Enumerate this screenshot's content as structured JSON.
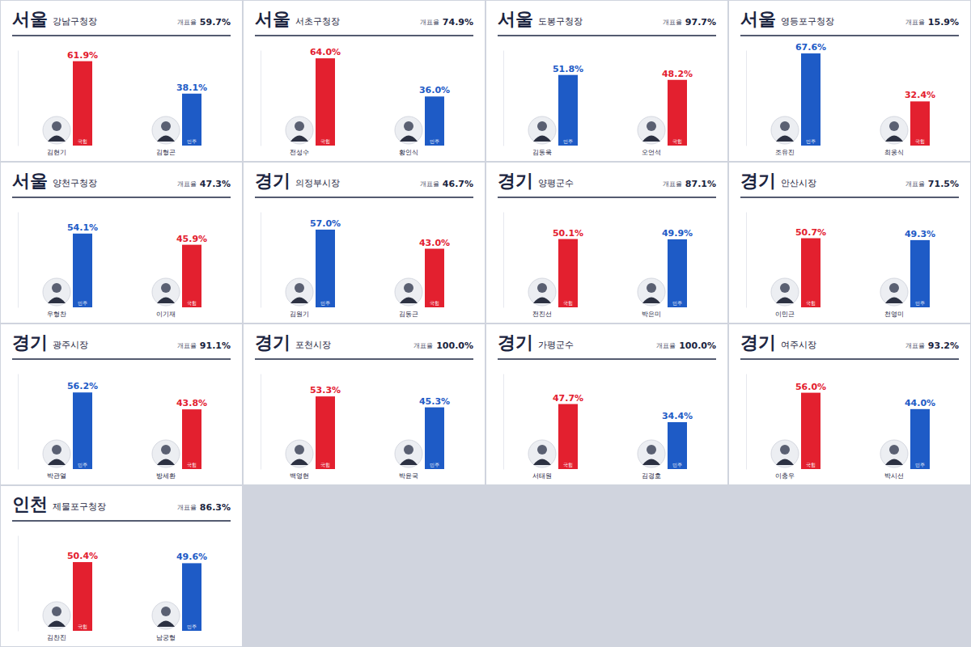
{
  "chart_data": [
    {
      "type": "bar",
      "title": "서울",
      "subtitle": "강남구청장",
      "count_label": "개표율",
      "count_rate": "59.7%",
      "categories": [
        "김현기",
        "김형곤"
      ],
      "parties": [
        "국힘",
        "민주"
      ],
      "values": [
        61.9,
        38.1
      ],
      "value_labels": [
        "61.9%",
        "38.1%"
      ],
      "colors": [
        "#e3202f",
        "#1e5bc6"
      ],
      "ylim": [
        0,
        70
      ],
      "tick_labels": false,
      "data_labels": true
    },
    {
      "type": "bar",
      "title": "서울",
      "subtitle": "서초구청장",
      "count_label": "개표율",
      "count_rate": "74.9%",
      "categories": [
        "전성수",
        "황인식"
      ],
      "parties": [
        "국힘",
        "민주"
      ],
      "values": [
        64.0,
        36.0
      ],
      "value_labels": [
        "64.0%",
        "36.0%"
      ],
      "colors": [
        "#e3202f",
        "#1e5bc6"
      ],
      "ylim": [
        0,
        70
      ],
      "tick_labels": false,
      "data_labels": true
    },
    {
      "type": "bar",
      "title": "서울",
      "subtitle": "도봉구청장",
      "count_label": "개표율",
      "count_rate": "97.7%",
      "categories": [
        "김동욱",
        "오언석"
      ],
      "parties": [
        "민주",
        "국힘"
      ],
      "values": [
        51.8,
        48.2
      ],
      "value_labels": [
        "51.8%",
        "48.2%"
      ],
      "colors": [
        "#1e5bc6",
        "#e3202f"
      ],
      "ylim": [
        0,
        70
      ],
      "tick_labels": false,
      "data_labels": true
    },
    {
      "type": "bar",
      "title": "서울",
      "subtitle": "영등포구청장",
      "count_label": "개표율",
      "count_rate": "15.9%",
      "categories": [
        "조유진",
        "최웅식"
      ],
      "parties": [
        "민주",
        "국힘"
      ],
      "values": [
        67.6,
        32.4
      ],
      "value_labels": [
        "67.6%",
        "32.4%"
      ],
      "colors": [
        "#1e5bc6",
        "#e3202f"
      ],
      "ylim": [
        0,
        70
      ],
      "tick_labels": false,
      "data_labels": true
    },
    {
      "type": "bar",
      "title": "서울",
      "subtitle": "양천구청장",
      "count_label": "개표율",
      "count_rate": "47.3%",
      "categories": [
        "우형찬",
        "이기재"
      ],
      "parties": [
        "민주",
        "국힘"
      ],
      "values": [
        54.1,
        45.9
      ],
      "value_labels": [
        "54.1%",
        "45.9%"
      ],
      "colors": [
        "#1e5bc6",
        "#e3202f"
      ],
      "ylim": [
        0,
        70
      ],
      "tick_labels": false,
      "data_labels": true
    },
    {
      "type": "bar",
      "title": "경기",
      "subtitle": "의정부시장",
      "count_label": "개표율",
      "count_rate": "46.7%",
      "categories": [
        "김원기",
        "김동근"
      ],
      "parties": [
        "민주",
        "국힘"
      ],
      "values": [
        57.0,
        43.0
      ],
      "value_labels": [
        "57.0%",
        "43.0%"
      ],
      "colors": [
        "#1e5bc6",
        "#e3202f"
      ],
      "ylim": [
        0,
        70
      ],
      "tick_labels": false,
      "data_labels": true
    },
    {
      "type": "bar",
      "title": "경기",
      "subtitle": "양평군수",
      "count_label": "개표율",
      "count_rate": "87.1%",
      "categories": [
        "전진선",
        "박은미"
      ],
      "parties": [
        "국힘",
        "민주"
      ],
      "values": [
        50.1,
        49.9
      ],
      "value_labels": [
        "50.1%",
        "49.9%"
      ],
      "colors": [
        "#e3202f",
        "#1e5bc6"
      ],
      "ylim": [
        0,
        70
      ],
      "tick_labels": false,
      "data_labels": true
    },
    {
      "type": "bar",
      "title": "경기",
      "subtitle": "안산시장",
      "count_label": "개표율",
      "count_rate": "71.5%",
      "categories": [
        "이민근",
        "천영미"
      ],
      "parties": [
        "국힘",
        "민주"
      ],
      "values": [
        50.7,
        49.3
      ],
      "value_labels": [
        "50.7%",
        "49.3%"
      ],
      "colors": [
        "#e3202f",
        "#1e5bc6"
      ],
      "ylim": [
        0,
        70
      ],
      "tick_labels": false,
      "data_labels": true
    },
    {
      "type": "bar",
      "title": "경기",
      "subtitle": "광주시장",
      "count_label": "개표율",
      "count_rate": "91.1%",
      "categories": [
        "박관열",
        "방세환"
      ],
      "parties": [
        "민주",
        "국힘"
      ],
      "values": [
        56.2,
        43.8
      ],
      "value_labels": [
        "56.2%",
        "43.8%"
      ],
      "colors": [
        "#1e5bc6",
        "#e3202f"
      ],
      "ylim": [
        0,
        70
      ],
      "tick_labels": false,
      "data_labels": true
    },
    {
      "type": "bar",
      "title": "경기",
      "subtitle": "포천시장",
      "count_label": "개표율",
      "count_rate": "100.0%",
      "categories": [
        "백영현",
        "박윤국"
      ],
      "parties": [
        "국힘",
        "민주"
      ],
      "values": [
        53.3,
        45.3
      ],
      "value_labels": [
        "53.3%",
        "45.3%"
      ],
      "colors": [
        "#e3202f",
        "#1e5bc6"
      ],
      "ylim": [
        0,
        70
      ],
      "tick_labels": false,
      "data_labels": true
    },
    {
      "type": "bar",
      "title": "경기",
      "subtitle": "가평군수",
      "count_label": "개표율",
      "count_rate": "100.0%",
      "categories": [
        "서태원",
        "김경호"
      ],
      "parties": [
        "국힘",
        "민주"
      ],
      "values": [
        47.7,
        34.4
      ],
      "value_labels": [
        "47.7%",
        "34.4%"
      ],
      "colors": [
        "#e3202f",
        "#1e5bc6"
      ],
      "ylim": [
        0,
        70
      ],
      "tick_labels": false,
      "data_labels": true
    },
    {
      "type": "bar",
      "title": "경기",
      "subtitle": "여주시장",
      "count_label": "개표율",
      "count_rate": "93.2%",
      "categories": [
        "이충우",
        "박시선"
      ],
      "parties": [
        "국힘",
        "민주"
      ],
      "values": [
        56.0,
        44.0
      ],
      "value_labels": [
        "56.0%",
        "44.0%"
      ],
      "colors": [
        "#e3202f",
        "#1e5bc6"
      ],
      "ylim": [
        0,
        70
      ],
      "tick_labels": false,
      "data_labels": true
    },
    {
      "type": "bar",
      "title": "인천",
      "subtitle": "제물포구청장",
      "count_label": "개표율",
      "count_rate": "86.3%",
      "categories": [
        "김찬진",
        "남궁형"
      ],
      "parties": [
        "국힘",
        "민주"
      ],
      "values": [
        50.4,
        49.6
      ],
      "value_labels": [
        "50.4%",
        "49.6%"
      ],
      "colors": [
        "#e3202f",
        "#1e5bc6"
      ],
      "ylim": [
        0,
        70
      ],
      "tick_labels": false,
      "data_labels": true
    }
  ]
}
